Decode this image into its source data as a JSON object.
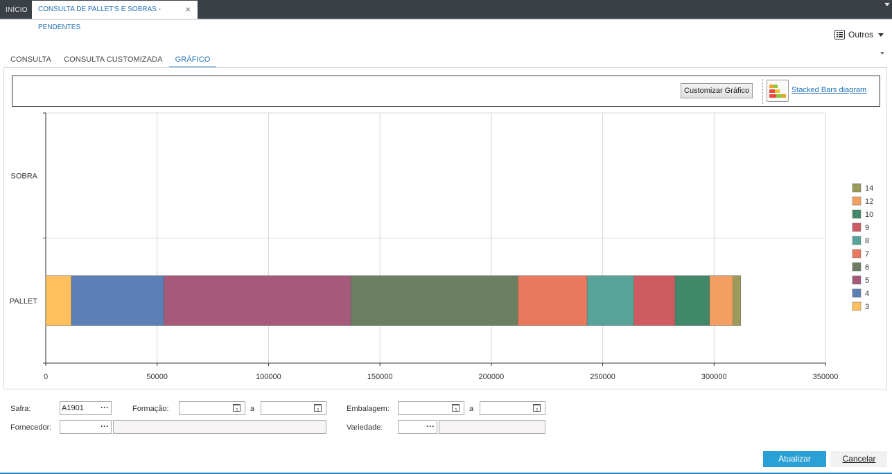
{
  "tabs": {
    "home": "INÍCIO",
    "active": "CONSULTA DE PALLET'S E SOBRAS - PENDENTES",
    "close": "×"
  },
  "toolbar": {
    "outros": "Outros"
  },
  "subtabs": [
    "CONSULTA",
    "CONSULTA CUSTOMIZADA",
    "GRÁFICO"
  ],
  "chart_toolbar": {
    "customize_label": "Customizar Gráfico",
    "diagram_link": "Stacked Bars diagram"
  },
  "chart_data": {
    "type": "bar",
    "orientation": "horizontal",
    "stacked": true,
    "categories": [
      "SOBRA",
      "PALLET"
    ],
    "xlim": [
      0,
      350000
    ],
    "xticks": [
      "0",
      "50000",
      "100000",
      "150000",
      "200000",
      "250000",
      "300000",
      "350000"
    ],
    "grid": true,
    "legend_position": "right",
    "series": [
      {
        "name": "3",
        "color": "#fec05d",
        "values": [
          0,
          11500
        ]
      },
      {
        "name": "4",
        "color": "#5a80b7",
        "values": [
          0,
          41500
        ]
      },
      {
        "name": "5",
        "color": "#a55a7b",
        "values": [
          0,
          84000
        ]
      },
      {
        "name": "6",
        "color": "#6b7e60",
        "values": [
          0,
          75000
        ]
      },
      {
        "name": "7",
        "color": "#e8795e",
        "values": [
          0,
          31000
        ]
      },
      {
        "name": "8",
        "color": "#58a49b",
        "values": [
          0,
          21000
        ]
      },
      {
        "name": "9",
        "color": "#cf5b62",
        "values": [
          0,
          18500
        ]
      },
      {
        "name": "10",
        "color": "#418769",
        "values": [
          0,
          15500
        ]
      },
      {
        "name": "12",
        "color": "#f49f62",
        "values": [
          0,
          10500
        ]
      },
      {
        "name": "14",
        "color": "#9c9b5c",
        "values": [
          0,
          3500
        ]
      }
    ]
  },
  "filters": {
    "safra_label": "Safra:",
    "safra_value": "A1901",
    "formacao_label": "Formação:",
    "a1": "a",
    "embalagem_label": "Embalagem:",
    "a2": "a",
    "fornecedor_label": "Fornecedor:",
    "variedade_label": "Variedade:",
    "dots": "···"
  },
  "actions": {
    "atualizar": "Atualizar",
    "cancelar": "Cancelar"
  }
}
